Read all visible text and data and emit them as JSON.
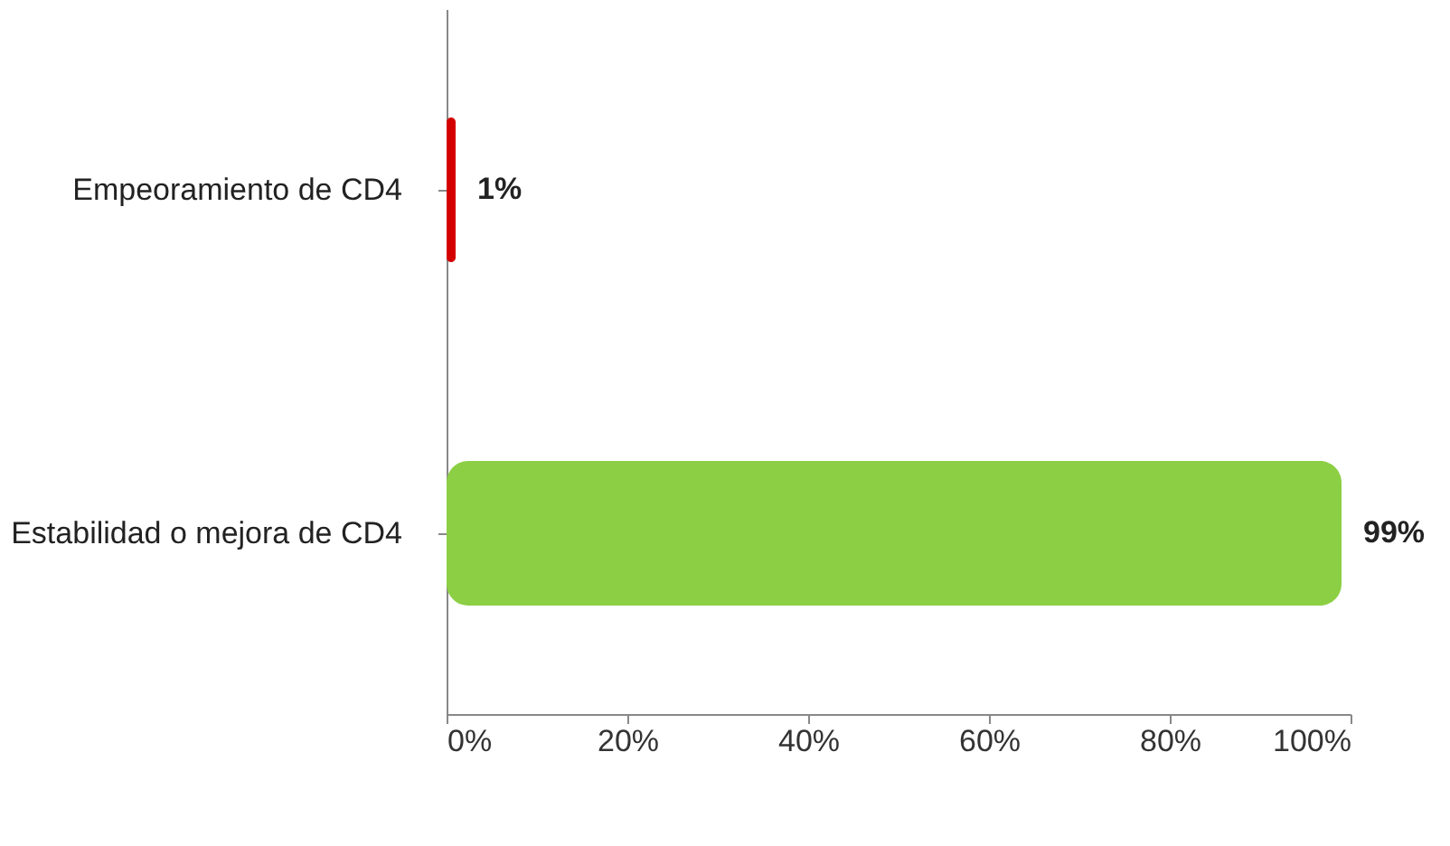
{
  "chart_data": {
    "type": "bar",
    "orientation": "horizontal",
    "categories": [
      "Empeoramiento de CD4",
      "Estabilidad o mejora de CD4"
    ],
    "values": [
      1,
      99
    ],
    "colors": [
      "#d40000",
      "#8ccf45"
    ],
    "value_labels": [
      "1%",
      "99%"
    ],
    "xlim": [
      0,
      100
    ],
    "xticks": [
      {
        "value": 0,
        "label": "0%"
      },
      {
        "value": 20,
        "label": "20%"
      },
      {
        "value": 40,
        "label": "40%"
      },
      {
        "value": 60,
        "label": "60%"
      },
      {
        "value": 80,
        "label": "80%"
      },
      {
        "value": 100,
        "label": "100%"
      }
    ],
    "grid": false
  }
}
